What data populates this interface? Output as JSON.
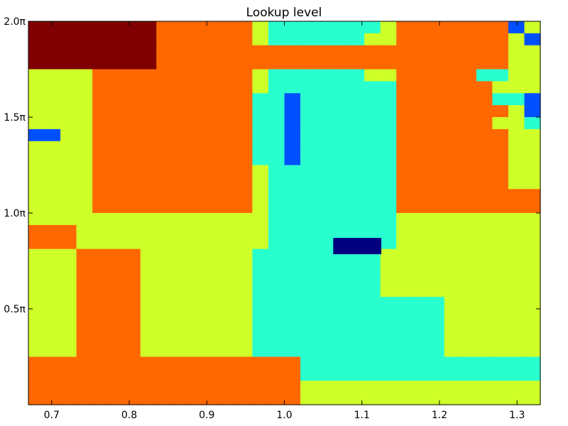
{
  "chart_data": {
    "type": "heatmap",
    "title": "Lookup level",
    "xlabel": "",
    "ylabel": "",
    "xlim": [
      0.67,
      1.33
    ],
    "ylim": [
      0,
      2.0
    ],
    "y_units": "pi",
    "x_ticks": [
      {
        "value": 0.7,
        "label": "0.7"
      },
      {
        "value": 0.8,
        "label": "0.8"
      },
      {
        "value": 0.9,
        "label": "0.9"
      },
      {
        "value": 1.0,
        "label": "1.0"
      },
      {
        "value": 1.1,
        "label": "1.1"
      },
      {
        "value": 1.2,
        "label": "1.2"
      },
      {
        "value": 1.3,
        "label": "1.3"
      }
    ],
    "y_ticks": [
      {
        "value": 0.5,
        "label": "0.5π"
      },
      {
        "value": 1.0,
        "label": "1.0π"
      },
      {
        "value": 1.5,
        "label": "1.5π"
      },
      {
        "value": 2.0,
        "label": "2.0π"
      }
    ],
    "grid": false,
    "legend": "none",
    "colormap": "jet",
    "level_colors": {
      "0": "#00007f",
      "1": "#0050ff",
      "2": "#29ffce",
      "3": "#ceff29",
      "4": "#ff6800",
      "5": "#7f0000"
    },
    "cols": 32,
    "rows": 32,
    "grid_levels_top_to_bottom": [
      "55555555444444322222223444444433",
      "55555555444444322222233444444432",
      "55555555444444444444444444444433",
      "55555555444444444444444444444433",
      "33334444444444322222233444444433",
      "33334444444444322222222444444433",
      "33334444444444221222222444444433",
      "33334444444444221222222444444433",
      "33334444444444221222222444444332",
      "11334444444444221222222444444433",
      "33334444444444221222222444444433",
      "33334444444444221222222444444433",
      "33334444444444322222222444444433",
      "33334444444444322222222444444433",
      "33334444444444322222222444444444",
      "33334444444444322222222444444444",
      "33333333333333322222222333333333",
      "44433333333333322222222333333333",
      "44433333333333322222222333333333",
      "33344443333333222222223333333333",
      "33344443333333222222223333333333",
      "33344443333333222222223333333333",
      "33344443333333222222223333333333",
      "33344443333333222222222222333333",
      "33344443333333222222222222333333",
      "33344443333333222222222222333333",
      "33344443333333222222222222333333",
      "33344443333333222222222222333333",
      "44444444444444444222222222222222",
      "44444444444444444222222222222222",
      "44444444444444444333333333333333",
      "44444444444444444333333333333333"
    ],
    "grid_overrides_top_to_bottom": [
      {
        "row": 0,
        "col": 30,
        "level": 1
      },
      {
        "row": 1,
        "col": 31,
        "level": 1
      },
      {
        "row": 5,
        "col": 29,
        "level": 3
      },
      {
        "row": 5,
        "col": 30,
        "level": 3
      },
      {
        "row": 4,
        "col": 28,
        "level": 2
      },
      {
        "row": 4,
        "col": 29,
        "level": 2
      },
      {
        "row": 6,
        "col": 29,
        "level": 2
      },
      {
        "row": 6,
        "col": 30,
        "level": 2
      },
      {
        "row": 6,
        "col": 31,
        "level": 2
      },
      {
        "row": 6,
        "col": 31,
        "level": 1
      },
      {
        "row": 7,
        "col": 31,
        "level": 1
      }
    ]
  }
}
